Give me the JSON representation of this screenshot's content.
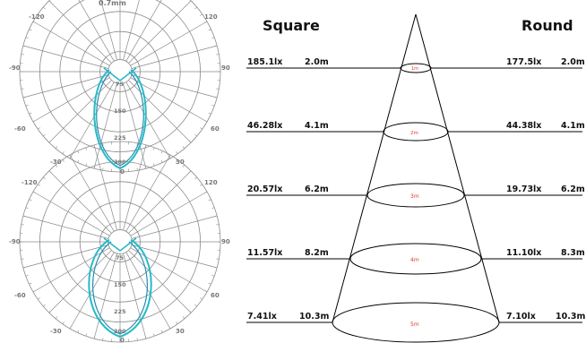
{
  "polar_top": {
    "title_fragment": "0.7mm",
    "angle_labels": [
      "-120",
      "120",
      "-90",
      "90",
      "-60",
      "60",
      "-30",
      "30",
      "0"
    ],
    "radial_labels": [
      "75",
      "150",
      "225",
      "300"
    ]
  },
  "polar_bottom": {
    "angle_labels": [
      "-120",
      "120",
      "-90",
      "90",
      "-60",
      "60",
      "-30",
      "30",
      "0"
    ],
    "radial_labels": [
      "75",
      "150",
      "225",
      "300"
    ]
  },
  "cone": {
    "left_heading": "Square",
    "right_heading": "Round",
    "rows": [
      {
        "sq_lux": "185.1lx",
        "sq_dia": "2.0m",
        "rd_lux": "177.5lx",
        "rd_dia": "2.0m",
        "dist": "1m"
      },
      {
        "sq_lux": "46.28lx",
        "sq_dia": "4.1m",
        "rd_lux": "44.38lx",
        "rd_dia": "4.1m",
        "dist": "2m"
      },
      {
        "sq_lux": "20.57lx",
        "sq_dia": "6.2m",
        "rd_lux": "19.73lx",
        "rd_dia": "6.2m",
        "dist": "3m"
      },
      {
        "sq_lux": "11.57lx",
        "sq_dia": "8.2m",
        "rd_lux": "11.10lx",
        "rd_dia": "8.3m",
        "dist": "4m"
      },
      {
        "sq_lux": "7.41lx",
        "sq_dia": "10.3m",
        "rd_lux": "7.10lx",
        "rd_dia": "10.3m",
        "dist": "5m"
      }
    ]
  },
  "colors": {
    "curve": "#27b9c9",
    "curve_dark": "#1f8fb0",
    "grid": "#8a8a8a",
    "ring_text": "#e0382a"
  }
}
